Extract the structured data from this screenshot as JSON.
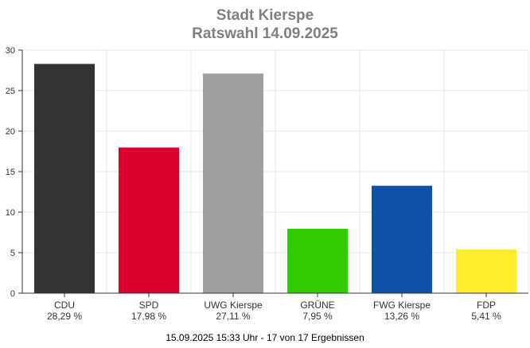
{
  "chart_data": {
    "type": "bar",
    "title": "Stadt Kierspe",
    "subtitle": "Ratswahl 14.09.2025",
    "categories": [
      "CDU",
      "SPD",
      "UWG Kierspe",
      "GRÜNE",
      "FWG Kierspe",
      "FDP"
    ],
    "value_labels": [
      "28,29 %",
      "17,98 %",
      "27,11 %",
      "7,95 %",
      "13,26 %",
      "5,41 %"
    ],
    "values": [
      28.29,
      17.98,
      27.11,
      7.95,
      13.26,
      5.41
    ],
    "colors": [
      "#333333",
      "#dc002d",
      "#a09f9d",
      "#32cd00",
      "#0f52a8",
      "#fded2d"
    ],
    "ylim": [
      0,
      30
    ],
    "yticks": [
      "0",
      "5",
      "10",
      "15",
      "20",
      "25",
      "30"
    ],
    "grid": true,
    "xlabel": "",
    "ylabel": ""
  },
  "footer": "15.09.2025 15:33 Uhr - 17 von 17 Ergebnissen"
}
